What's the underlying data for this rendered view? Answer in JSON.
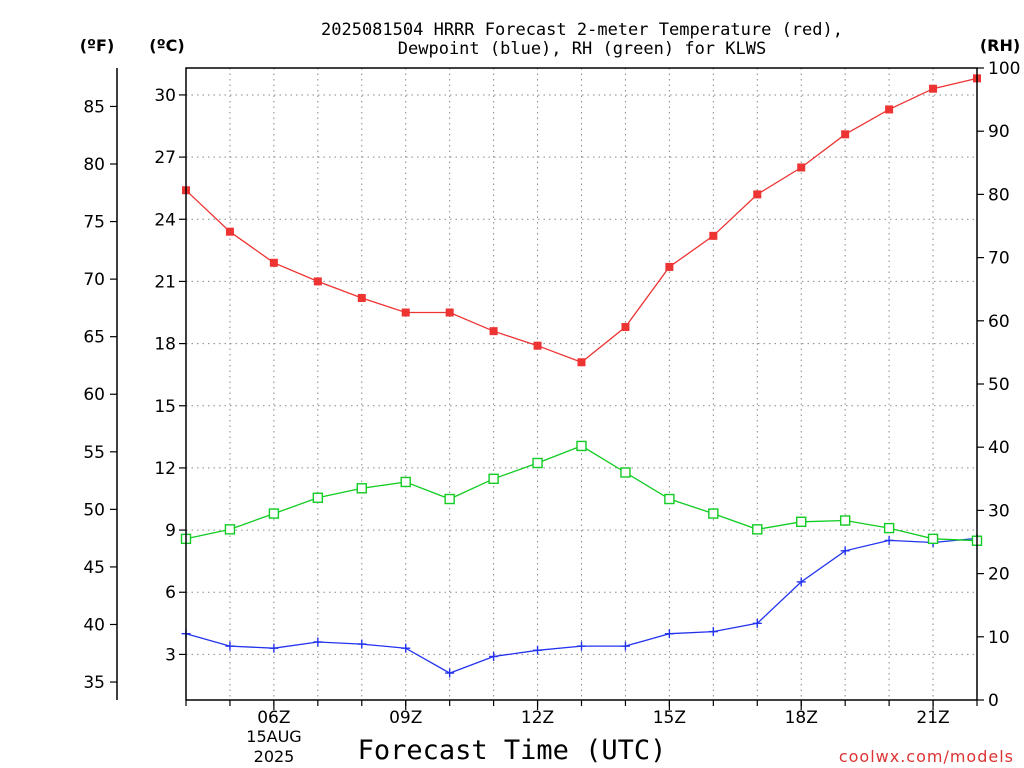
{
  "chart_data": {
    "type": "line",
    "title_line1": "2025081504 HRRR Forecast 2-meter Temperature (red),",
    "title_line2": "Dewpoint (blue), RH (green) for KLWS",
    "xlabel": "Forecast Time (UTC)",
    "unit_f": "(ºF)",
    "unit_c": "(ºC)",
    "unit_rh": "(RH)",
    "credit": "coolwx.com/models",
    "date_label": [
      "15AUG",
      "2025"
    ],
    "x_hours": [
      4,
      5,
      6,
      7,
      8,
      9,
      10,
      11,
      12,
      13,
      14,
      15,
      16,
      17,
      18,
      19,
      20,
      21,
      22
    ],
    "xlim": [
      4,
      22
    ],
    "x_ticks": [
      {
        "hour": 6,
        "label": "06Z"
      },
      {
        "hour": 9,
        "label": "09Z"
      },
      {
        "hour": 12,
        "label": "12Z"
      },
      {
        "hour": 15,
        "label": "15Z"
      },
      {
        "hour": 18,
        "label": "18Z"
      },
      {
        "hour": 21,
        "label": "21Z"
      }
    ],
    "celsius_axis": {
      "lim": [
        0.8,
        31.3
      ],
      "ticks": [
        3,
        6,
        9,
        12,
        15,
        18,
        21,
        24,
        27,
        30
      ]
    },
    "fahrenheit_axis": {
      "ticks": [
        35,
        40,
        45,
        50,
        55,
        60,
        65,
        70,
        75,
        80,
        85
      ]
    },
    "rh_axis": {
      "lim": [
        0,
        100
      ],
      "ticks": [
        0,
        10,
        20,
        30,
        40,
        50,
        60,
        70,
        80,
        90,
        100
      ]
    },
    "grid": true,
    "series": [
      {
        "name": "Temperature",
        "axis": "celsius",
        "color": "#ee3333",
        "marker": "filled-square",
        "values": [
          25.4,
          23.4,
          21.9,
          21.0,
          20.2,
          19.5,
          19.5,
          18.6,
          17.9,
          17.1,
          18.8,
          21.7,
          23.2,
          25.2,
          26.5,
          28.1,
          29.3,
          30.3,
          30.8
        ]
      },
      {
        "name": "Dewpoint",
        "axis": "celsius",
        "color": "#2233ee",
        "marker": "plus",
        "values": [
          4.0,
          3.4,
          3.3,
          3.6,
          3.5,
          3.3,
          2.1,
          2.9,
          3.2,
          3.4,
          3.4,
          4.0,
          4.1,
          4.5,
          6.5,
          8.0,
          8.5,
          8.4,
          8.6
        ]
      },
      {
        "name": "RH",
        "axis": "rh",
        "color": "#11cc22",
        "marker": "open-square",
        "values": [
          25.5,
          27.0,
          29.5,
          32.0,
          33.5,
          34.5,
          31.8,
          35.0,
          37.5,
          40.2,
          36.0,
          31.8,
          29.5,
          27.0,
          28.2,
          28.4,
          27.2,
          25.5,
          25.2
        ]
      }
    ]
  }
}
